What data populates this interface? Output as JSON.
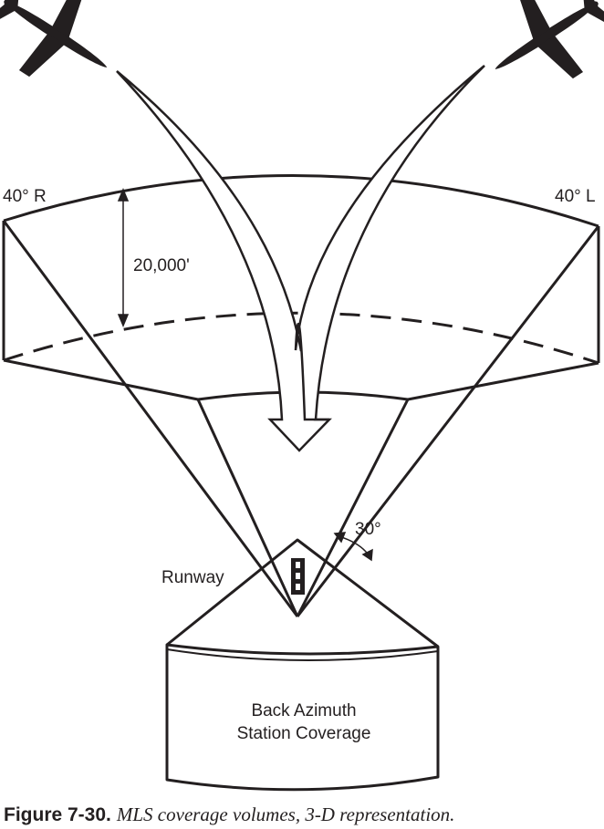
{
  "diagram": {
    "labels": {
      "left_angle": "40° R",
      "right_angle": "40° L",
      "altitude": "20,000'",
      "elevation_angle": "30°",
      "runway": "Runway",
      "back_azimuth_line1": "Back Azimuth",
      "back_azimuth_line2": "Station Coverage"
    },
    "icons": [
      "airplane-icon",
      "airplane-icon"
    ]
  },
  "caption": {
    "label": "Figure 7-30.",
    "text": "MLS coverage volumes, 3-D representation."
  }
}
